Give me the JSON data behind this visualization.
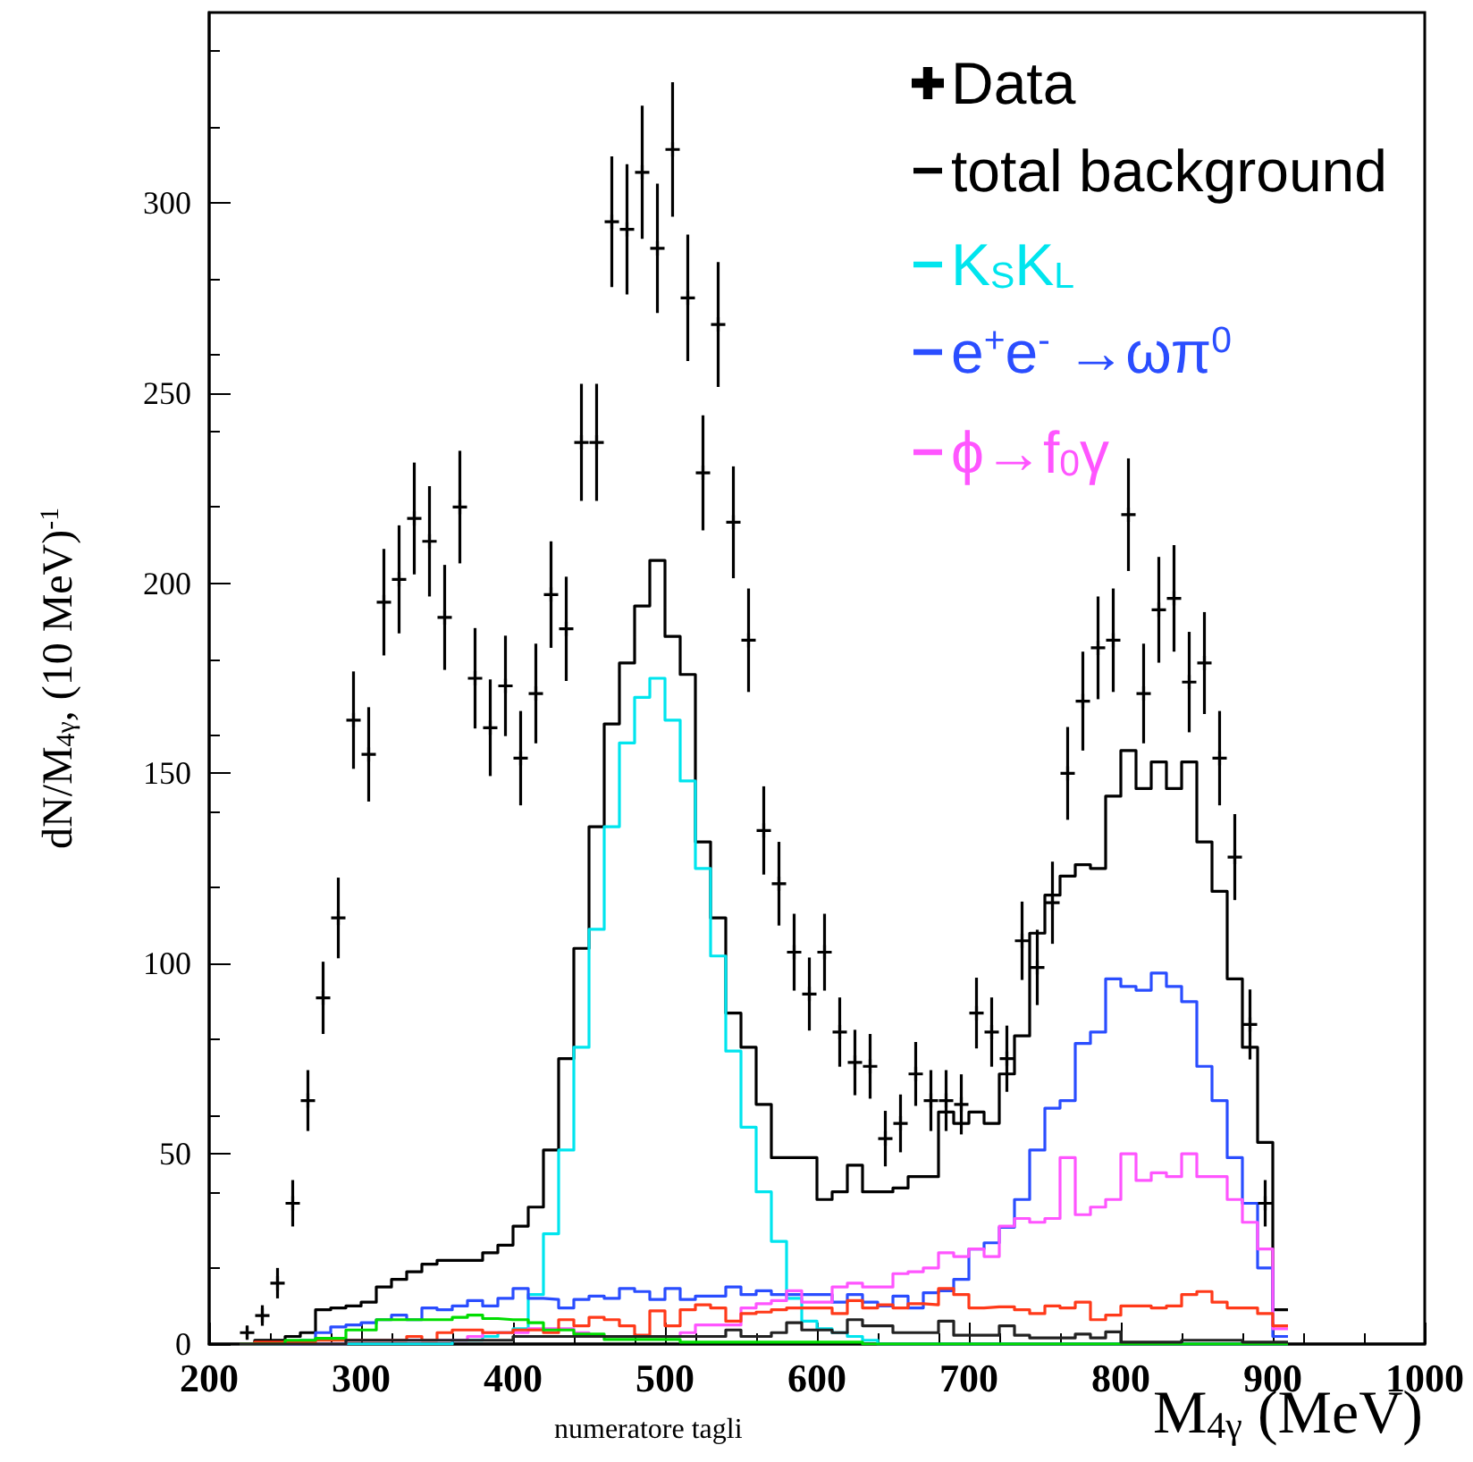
{
  "chart_data": {
    "type": "histogram",
    "xlabel": "M$_{4γ}$ (MeV)",
    "ylabel": "dN/M$_{4γ}$, (10 MeV)$^{-1}$",
    "annotations": [
      "numeratore tagli"
    ],
    "xlim": [
      200,
      1000
    ],
    "xticks": [
      200,
      300,
      400,
      500,
      600,
      700,
      800,
      900,
      1000
    ],
    "ylim": [
      0,
      350
    ],
    "yticks": [
      0,
      50,
      100,
      150,
      200,
      250,
      300
    ],
    "legend": "top right",
    "marker": "cross",
    "bins": [
      220,
      230,
      240,
      250,
      260,
      270,
      280,
      290,
      300,
      310,
      320,
      330,
      340,
      350,
      360,
      370,
      380,
      390,
      400,
      410,
      420,
      430,
      440,
      450,
      460,
      470,
      480,
      490,
      500,
      510,
      520,
      530,
      540,
      550,
      560,
      570,
      580,
      590,
      600,
      610,
      620,
      630,
      640,
      650,
      660,
      670,
      680,
      690,
      700,
      710,
      720,
      730,
      740,
      750,
      760,
      770,
      780,
      790,
      800,
      810,
      820,
      830,
      840,
      850,
      860,
      870,
      880,
      890,
      900,
      910
    ],
    "series": [
      {
        "name": "total background",
        "color": "#000000",
        "values": [
          0,
          1,
          1,
          2,
          3,
          9,
          9.5,
          10,
          11,
          15,
          17,
          19,
          21,
          22,
          22,
          22,
          24,
          26,
          31,
          36,
          51,
          75,
          104,
          136,
          163,
          179,
          194,
          206,
          186,
          176,
          132,
          112,
          87,
          78,
          63,
          49,
          49,
          49,
          38,
          40,
          47,
          40,
          40,
          41,
          44,
          44,
          61,
          58,
          61,
          58,
          71,
          81,
          108,
          118,
          123,
          126,
          125,
          144,
          156,
          146,
          153,
          146,
          153,
          132,
          119,
          96,
          78,
          53,
          9
        ]
      },
      {
        "name": "K$_{S}$K$_{L}$",
        "color": "#00e5ee",
        "values": [
          0,
          0,
          0,
          0,
          0,
          0,
          0,
          0,
          0,
          0,
          0,
          0,
          0,
          0,
          1,
          1,
          2,
          3,
          4,
          13,
          29,
          51,
          78,
          109,
          136,
          158,
          170,
          175,
          164,
          148,
          125,
          102,
          77,
          57,
          40,
          27,
          12,
          6,
          4,
          3,
          2,
          1,
          0,
          0,
          0,
          0,
          0,
          0,
          0,
          0,
          0,
          0,
          0,
          0,
          0,
          0,
          0,
          0,
          0,
          0,
          0,
          0,
          0,
          0,
          0,
          0,
          0,
          0,
          0
        ]
      },
      {
        "name": "e$^{+}$e$^{-}$ →ωπ$^{0}$",
        "color": "#2a4dff",
        "values": [
          0,
          0,
          0,
          0,
          1,
          3,
          4.5,
          5,
          5.6,
          6.4,
          7.6,
          6.4,
          9.5,
          9,
          10,
          11.4,
          10,
          12,
          14.6,
          12,
          11.7,
          9.5,
          11.7,
          12.6,
          12,
          14.6,
          13.8,
          11.7,
          14.6,
          11.7,
          12.6,
          12.6,
          15,
          13,
          14,
          13,
          13,
          13,
          13,
          11,
          13,
          11,
          10,
          12.6,
          9.5,
          13.5,
          14,
          17,
          25,
          26.6,
          30.7,
          38,
          51,
          62,
          64,
          79,
          82,
          96,
          94,
          93,
          97.5,
          94,
          90,
          73,
          64,
          49,
          37,
          20,
          2
        ]
      },
      {
        "name": "ϕ→f$_{0}$γ",
        "color": "#ff55ff",
        "values": [
          0,
          0,
          0,
          0,
          0,
          0,
          0,
          1,
          1,
          1,
          1,
          1,
          1,
          1,
          1,
          2,
          3,
          3,
          3,
          4,
          4,
          4,
          3,
          2,
          2,
          2,
          2,
          2,
          2,
          3,
          5,
          5,
          5,
          9.5,
          10.6,
          11.4,
          14,
          11,
          11,
          15,
          16,
          15,
          15,
          18.5,
          19,
          20,
          24,
          23,
          25,
          23,
          31,
          33,
          32,
          33,
          49,
          34,
          36,
          38,
          50,
          43,
          45,
          44,
          50,
          44,
          44,
          38,
          32,
          25,
          4
        ]
      },
      {
        "color": "#ff3a1a",
        "values": [
          0,
          0.5,
          0.5,
          0.5,
          0.5,
          1,
          1,
          1,
          1,
          1,
          1,
          2,
          1,
          3,
          3.7,
          3.7,
          3,
          3,
          3.7,
          3.7,
          3,
          6.4,
          4.8,
          7,
          6.4,
          4.8,
          2.3,
          8.7,
          4.8,
          9,
          10.3,
          9.5,
          6,
          8,
          8.4,
          9,
          9.5,
          9.5,
          9.5,
          8,
          11.4,
          9.5,
          10.3,
          9.5,
          10.6,
          10.3,
          14.6,
          13,
          9.5,
          9.8,
          9.8,
          9,
          8,
          10,
          9.5,
          11,
          6.4,
          7.6,
          10,
          10,
          9.5,
          10,
          13,
          13.8,
          11,
          9.5,
          9.5,
          8,
          4.8
        ]
      },
      {
        "color": "#00dd00",
        "values": [
          0,
          0,
          0,
          1,
          1,
          1.5,
          1.5,
          3.7,
          3.7,
          6.4,
          6.4,
          6.4,
          6.4,
          6.4,
          7,
          7.6,
          6.7,
          6.4,
          6.4,
          5.6,
          3.7,
          3.7,
          2.6,
          2.6,
          1.2,
          1.2,
          1.2,
          1.2,
          1.2,
          0.5,
          0.5,
          0.5,
          0.5,
          0.5,
          0.5,
          0.5,
          0.5,
          0.5,
          0.5,
          0.5,
          0.5,
          0,
          0,
          0,
          0,
          0,
          0,
          0,
          0,
          0,
          0,
          0,
          0,
          0,
          0,
          0,
          0,
          0,
          0,
          0,
          0,
          0,
          0,
          0,
          0,
          0,
          0,
          0,
          0
        ]
      },
      {
        "color": "#222222",
        "values": [
          0,
          0,
          0,
          0,
          0,
          0,
          0,
          1,
          1,
          1,
          1,
          1,
          1,
          1,
          1,
          1,
          1,
          1,
          2,
          2,
          2,
          2,
          2,
          2,
          2,
          2,
          2,
          2,
          2,
          2,
          2,
          2,
          3.7,
          2,
          2,
          3,
          5.6,
          3.7,
          3.7,
          3,
          6.4,
          4.8,
          4.8,
          3,
          3,
          3,
          6,
          2.3,
          2.3,
          2.3,
          4.8,
          2.3,
          1.6,
          1.6,
          1.6,
          2.6,
          1.6,
          3.2,
          0.5,
          0.5,
          0.5,
          0.5,
          1,
          1,
          1,
          1,
          0.5,
          0.5,
          0.5
        ]
      },
      {
        "type": "scatter",
        "name": "Data",
        "color": "#000000",
        "x": [
          225,
          235,
          245,
          255,
          265,
          275,
          285,
          295,
          305,
          315,
          325,
          335,
          345,
          355,
          365,
          375,
          385,
          395,
          405,
          415,
          425,
          435,
          445,
          455,
          465,
          475,
          485,
          495,
          505,
          515,
          525,
          535,
          545,
          555,
          565,
          575,
          585,
          595,
          605,
          615,
          625,
          635,
          645,
          655,
          665,
          675,
          685,
          695,
          705,
          715,
          725,
          735,
          745,
          755,
          765,
          775,
          785,
          795,
          805,
          815,
          825,
          835,
          845,
          855,
          865,
          875,
          885,
          895
        ],
        "values": [
          3,
          7.5,
          16,
          37,
          64,
          91,
          112,
          164,
          155,
          195,
          201,
          217,
          211,
          191,
          220,
          175,
          162,
          173,
          154,
          171,
          197,
          188,
          237,
          237,
          295,
          293,
          308,
          288,
          314,
          275,
          229,
          268,
          216,
          185,
          135,
          121,
          103,
          92,
          103,
          82,
          74,
          73,
          54,
          58,
          71,
          64,
          64,
          63,
          87,
          82,
          75,
          106,
          99,
          116,
          150,
          169,
          183,
          185,
          218,
          171,
          193,
          196,
          174,
          179,
          154,
          128,
          84,
          37
        ],
        "errors": [
          1.7,
          2.7,
          4,
          6.1,
          8,
          9.5,
          10.6,
          12.8,
          12.4,
          14,
          14.2,
          14.7,
          14.5,
          13.8,
          14.8,
          13.2,
          12.7,
          13.2,
          12.4,
          13.1,
          14,
          13.7,
          15.4,
          15.4,
          17.2,
          17.1,
          17.5,
          17,
          17.7,
          16.6,
          15.1,
          16.4,
          14.7,
          13.6,
          11.6,
          11,
          10.1,
          9.6,
          10.1,
          9.1,
          8.6,
          8.5,
          7.3,
          7.6,
          8.4,
          8,
          8,
          7.9,
          9.3,
          9.1,
          8.7,
          10.3,
          9.9,
          10.8,
          12.2,
          13,
          13.5,
          13.6,
          14.8,
          13.1,
          13.9,
          14,
          13.2,
          13.4,
          12.4,
          11.3,
          9.2,
          6.1
        ]
      }
    ]
  }
}
